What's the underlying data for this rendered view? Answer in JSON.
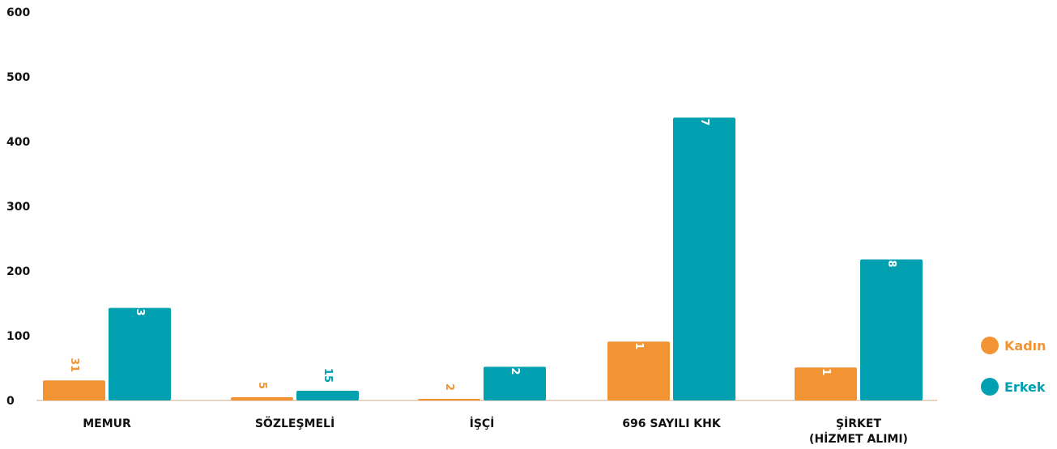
{
  "chart_data": {
    "type": "bar",
    "categories": [
      [
        "MEMUR"
      ],
      [
        "SÖZLEŞMELİ"
      ],
      [
        "İŞÇİ"
      ],
      [
        "696 SAYILI KHK"
      ],
      [
        "ŞİRKET",
        "(HİZMET ALIMI)"
      ]
    ],
    "series": [
      {
        "name": "Kadın",
        "color": "#f39434",
        "values": [
          31,
          5,
          2,
          91,
          51
        ]
      },
      {
        "name": "Erkek",
        "color": "#00a0b0",
        "values": [
          143,
          15,
          52,
          437,
          218
        ]
      }
    ],
    "yticks": [
      0,
      100,
      200,
      300,
      400,
      500,
      600
    ],
    "ylim": [
      0,
      600
    ],
    "grid": false,
    "legend": "right",
    "axis_color": "#c8a98a"
  }
}
